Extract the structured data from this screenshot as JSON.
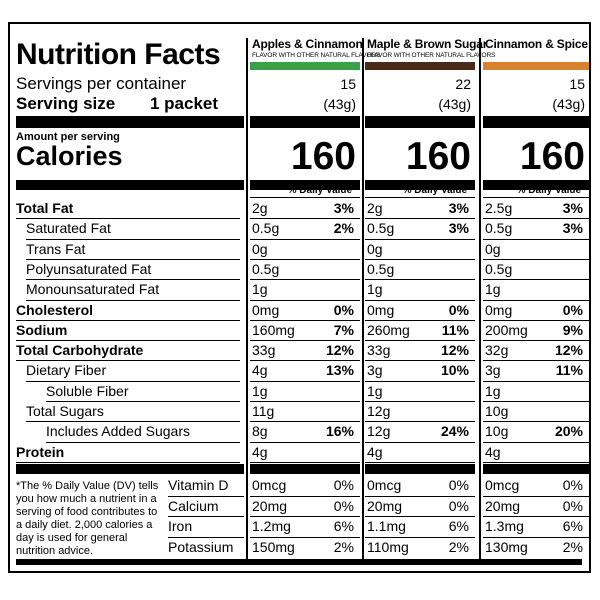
{
  "title": "Nutrition Facts",
  "servings_label": "Servings per container",
  "serving_size_label": "Serving size",
  "serving_size_value": "1 packet",
  "amount_per_serving": "Amount per serving",
  "calories_label": "Calories",
  "dv_header": "% Daily Value*",
  "footnote": "*The % Daily Value (DV) tells you how much a nutrient in a serving of food contributes to a daily diet. 2,000 calories a day is used for general nutrition advice.",
  "nutrient_labels": [
    {
      "label": "Total Fat",
      "bold": true,
      "indent": 0
    },
    {
      "label": "Saturated Fat",
      "bold": false,
      "indent": 1
    },
    {
      "label": "Trans Fat",
      "bold": false,
      "indent": 1
    },
    {
      "label": "Polyunsaturated Fat",
      "bold": false,
      "indent": 1
    },
    {
      "label": "Monounsaturated Fat",
      "bold": false,
      "indent": 1
    },
    {
      "label": "Cholesterol",
      "bold": true,
      "indent": 0
    },
    {
      "label": "Sodium",
      "bold": true,
      "indent": 0
    },
    {
      "label": "Total Carbohydrate",
      "bold": true,
      "indent": 0
    },
    {
      "label": "Dietary Fiber",
      "bold": false,
      "indent": 1
    },
    {
      "label": "Soluble Fiber",
      "bold": false,
      "indent": 2
    },
    {
      "label": "Total Sugars",
      "bold": false,
      "indent": 1
    },
    {
      "label": "Includes Added Sugars",
      "bold": false,
      "indent": 2
    },
    {
      "label": "Protein",
      "bold": true,
      "indent": 0
    }
  ],
  "vitamin_labels": [
    "Vitamin D",
    "Calcium",
    "Iron",
    "Potassium"
  ],
  "products": [
    {
      "name": "Apples & Cinnamon",
      "subtitle": "FLAVOR WITH OTHER NATURAL FLAVORS",
      "color": "#3aa04a",
      "servings": "15",
      "serving_grams": "(43g)",
      "calories": "160",
      "nutrients": [
        {
          "amount": "2g",
          "dv": "3%",
          "dv_bold": true
        },
        {
          "amount": "0.5g",
          "dv": "2%",
          "dv_bold": true
        },
        {
          "amount": "0g",
          "dv": ""
        },
        {
          "amount": "0.5g",
          "dv": ""
        },
        {
          "amount": "1g",
          "dv": ""
        },
        {
          "amount": "0mg",
          "dv": "0%",
          "dv_bold": true
        },
        {
          "amount": "160mg",
          "dv": "7%",
          "dv_bold": true
        },
        {
          "amount": "33g",
          "dv": "12%",
          "dv_bold": true
        },
        {
          "amount": "4g",
          "dv": "13%",
          "dv_bold": true
        },
        {
          "amount": "1g",
          "dv": ""
        },
        {
          "amount": "11g",
          "dv": ""
        },
        {
          "amount": "8g",
          "dv": "16%",
          "dv_bold": true
        },
        {
          "amount": "4g",
          "dv": ""
        }
      ],
      "vitamins": [
        {
          "amount": "0mcg",
          "dv": "0%"
        },
        {
          "amount": "20mg",
          "dv": "0%"
        },
        {
          "amount": "1.2mg",
          "dv": "6%"
        },
        {
          "amount": "150mg",
          "dv": "2%"
        }
      ]
    },
    {
      "name": "Maple & Brown Sugar",
      "subtitle": "FLAVOR WITH OTHER NATURAL FLAVORS",
      "color": "#4a2a18",
      "servings": "22",
      "serving_grams": "(43g)",
      "calories": "160",
      "nutrients": [
        {
          "amount": "2g",
          "dv": "3%",
          "dv_bold": true
        },
        {
          "amount": "0.5g",
          "dv": "3%",
          "dv_bold": true
        },
        {
          "amount": "0g",
          "dv": ""
        },
        {
          "amount": "0.5g",
          "dv": ""
        },
        {
          "amount": "1g",
          "dv": ""
        },
        {
          "amount": "0mg",
          "dv": "0%",
          "dv_bold": true
        },
        {
          "amount": "260mg",
          "dv": "11%",
          "dv_bold": true
        },
        {
          "amount": "33g",
          "dv": "12%",
          "dv_bold": true
        },
        {
          "amount": "3g",
          "dv": "10%",
          "dv_bold": true
        },
        {
          "amount": "1g",
          "dv": ""
        },
        {
          "amount": "12g",
          "dv": ""
        },
        {
          "amount": "12g",
          "dv": "24%",
          "dv_bold": true
        },
        {
          "amount": "4g",
          "dv": ""
        }
      ],
      "vitamins": [
        {
          "amount": "0mcg",
          "dv": "0%"
        },
        {
          "amount": "20mg",
          "dv": "0%"
        },
        {
          "amount": "1.1mg",
          "dv": "6%"
        },
        {
          "amount": "110mg",
          "dv": "2%"
        }
      ]
    },
    {
      "name": "Cinnamon & Spice",
      "subtitle": "",
      "color": "#d9822b",
      "servings": "15",
      "serving_grams": "(43g)",
      "calories": "160",
      "nutrients": [
        {
          "amount": "2.5g",
          "dv": "3%",
          "dv_bold": true
        },
        {
          "amount": "0.5g",
          "dv": "3%",
          "dv_bold": true
        },
        {
          "amount": "0g",
          "dv": ""
        },
        {
          "amount": "0.5g",
          "dv": ""
        },
        {
          "amount": "1g",
          "dv": ""
        },
        {
          "amount": "0mg",
          "dv": "0%",
          "dv_bold": true
        },
        {
          "amount": "200mg",
          "dv": "9%",
          "dv_bold": true
        },
        {
          "amount": "32g",
          "dv": "12%",
          "dv_bold": true
        },
        {
          "amount": "3g",
          "dv": "11%",
          "dv_bold": true
        },
        {
          "amount": "1g",
          "dv": ""
        },
        {
          "amount": "10g",
          "dv": ""
        },
        {
          "amount": "10g",
          "dv": "20%",
          "dv_bold": true
        },
        {
          "amount": "4g",
          "dv": ""
        }
      ],
      "vitamins": [
        {
          "amount": "0mcg",
          "dv": "0%"
        },
        {
          "amount": "20mg",
          "dv": "0%"
        },
        {
          "amount": "1.3mg",
          "dv": "6%"
        },
        {
          "amount": "130mg",
          "dv": "2%"
        }
      ]
    }
  ]
}
